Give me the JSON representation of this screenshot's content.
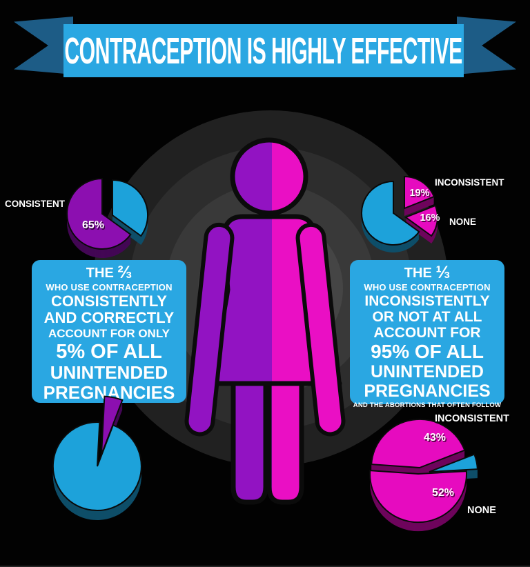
{
  "banner": {
    "title": "CONTRACEPTION IS HIGHLY EFFECTIVE"
  },
  "colors": {
    "accent_blue": "#2aa7e2",
    "ribbon_dark_blue": "#1d5c86",
    "figure_purple": "#9213c2",
    "figure_magenta": "#ea0fc4",
    "pie_blue": "#1da2da",
    "pie_purple": "#8c0fb0",
    "pie_magenta": "#e60bbf",
    "background": "#020202",
    "text_white": "#ffffff"
  },
  "figure": {
    "description": "woman silhouette split purple and magenta"
  },
  "left_box": {
    "title_prefix": "THE",
    "title_fraction": "⅔",
    "lines": [
      "WHO USE CONTRACEPTION",
      "CONSISTENTLY",
      "AND CORRECTLY",
      "ACCOUNT FOR ONLY",
      "5% OF ALL",
      "UNINTENDED",
      "PREGNANCIES"
    ]
  },
  "right_box": {
    "title_prefix": "THE",
    "title_fraction": "⅓",
    "lines": [
      "WHO USE CONTRACEPTION",
      "INCONSISTENTLY",
      "OR NOT AT ALL",
      "ACCOUNT FOR",
      "95% OF ALL",
      "UNINTENDED",
      "PREGNANCIES"
    ],
    "footnote": "AND THE ABORTIONS THAT OFTEN FOLLOW"
  },
  "chart_data": [
    {
      "id": "pie-top-left",
      "type": "pie",
      "position": "top-left",
      "unit": "percent",
      "slices": [
        {
          "name": "",
          "value": 35,
          "label": "",
          "color": "#1da2da"
        },
        {
          "name": "CONSISTENT",
          "value": 65,
          "label": "65%",
          "color": "#8c0fb0"
        }
      ]
    },
    {
      "id": "pie-top-right",
      "type": "pie",
      "position": "top-right",
      "unit": "percent",
      "slices": [
        {
          "name": "INCONSISTENT",
          "value": 19,
          "label": "19%",
          "color": "#e60bbf"
        },
        {
          "name": "NONE",
          "value": 16,
          "label": "16%",
          "color": "#e60bbf"
        },
        {
          "name": "",
          "value": 65,
          "label": "",
          "color": "#1da2da"
        }
      ]
    },
    {
      "id": "pie-bottom-left",
      "type": "pie",
      "position": "bottom-left",
      "unit": "percent",
      "slices": [
        {
          "name": "",
          "value": 5,
          "label": "",
          "color": "#8c0fb0"
        },
        {
          "name": "",
          "value": 95,
          "label": "",
          "color": "#1da2da"
        }
      ]
    },
    {
      "id": "pie-bottom-right",
      "type": "pie",
      "position": "bottom-right",
      "unit": "percent",
      "slices": [
        {
          "name": "INCONSISTENT",
          "value": 43,
          "label": "43%",
          "color": "#e60bbf"
        },
        {
          "name": "",
          "value": 5,
          "label": "",
          "color": "#1da2da"
        },
        {
          "name": "NONE",
          "value": 52,
          "label": "52%",
          "color": "#e60bbf"
        }
      ]
    }
  ]
}
